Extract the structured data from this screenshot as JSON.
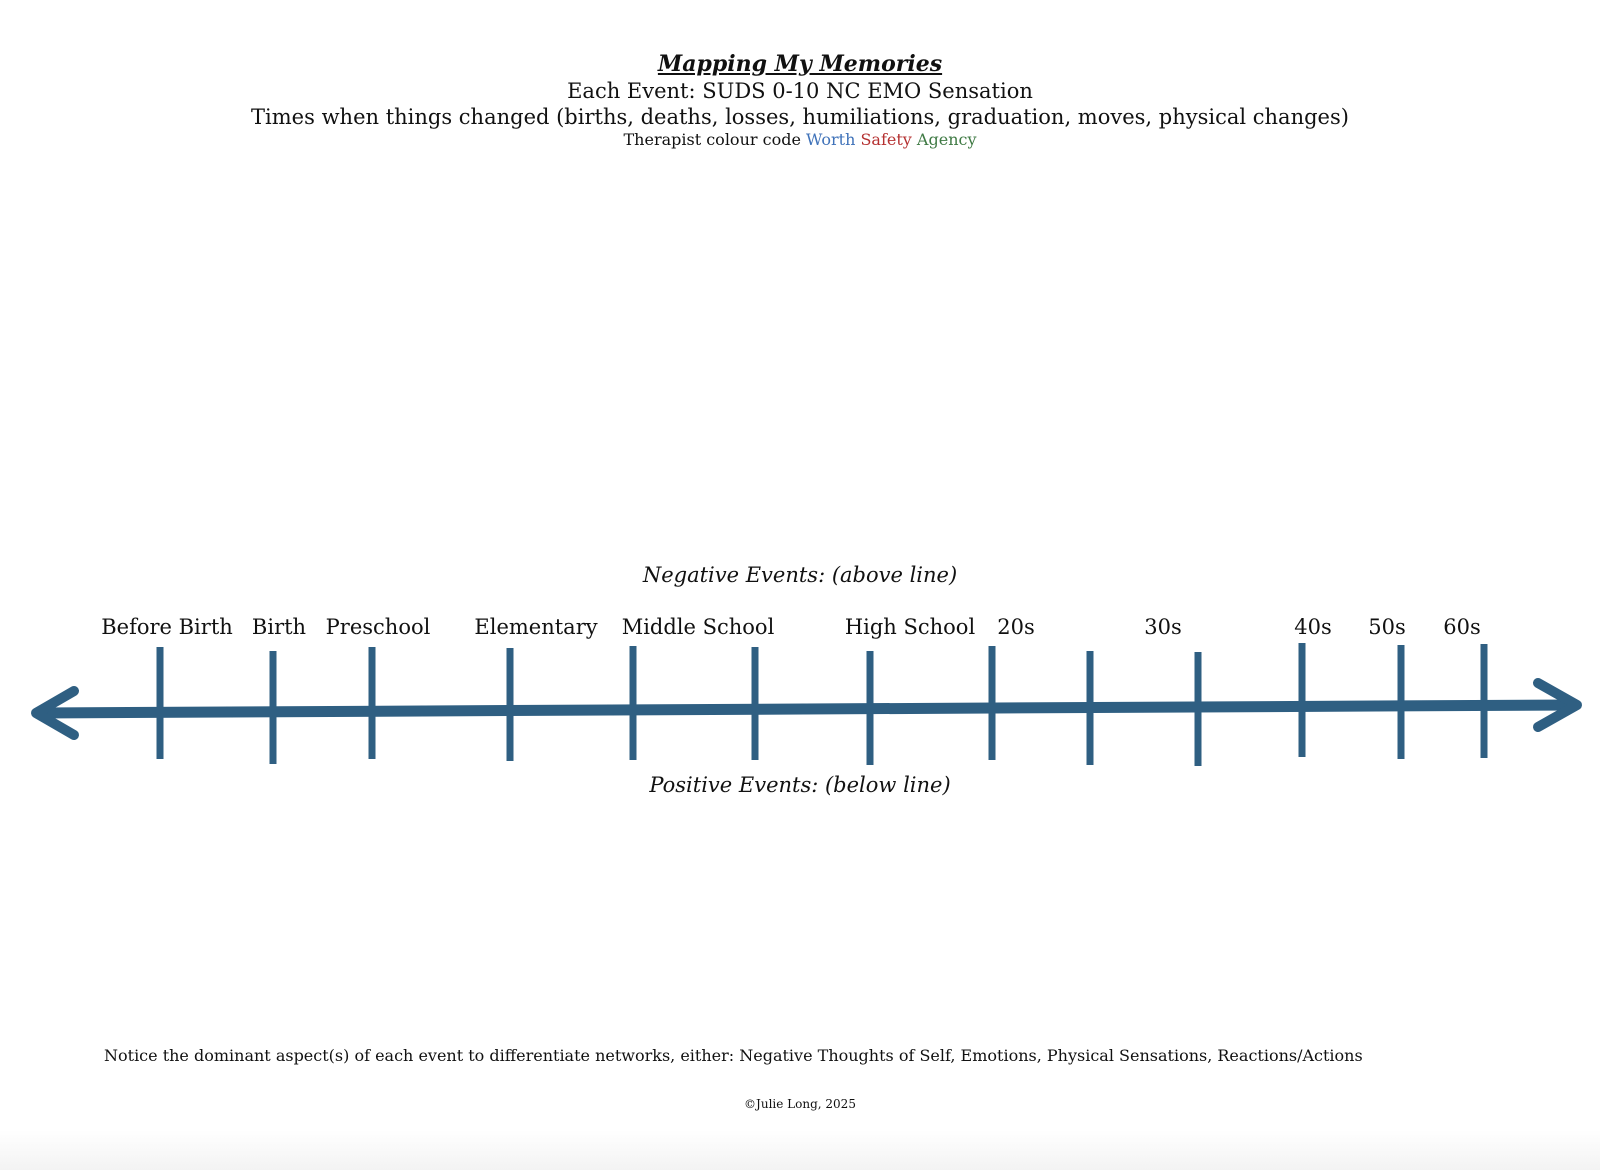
{
  "header": {
    "title": "Mapping My Memories",
    "line1": "Each Event: SUDS 0-10 NC EMO Sensation",
    "line2": "Times when things changed (births, deaths, losses, humiliations, graduation, moves, physical changes)",
    "colour_code_prefix": "Therapist colour code",
    "codes": [
      {
        "label": "Worth",
        "color": "#3f72b9"
      },
      {
        "label": "Safety",
        "color": "#b53131"
      },
      {
        "label": "Agency",
        "color": "#3f7a44"
      }
    ]
  },
  "timeline": {
    "negative_label": "Negative Events: (above line)",
    "positive_label": "Positive Events: (below line)",
    "line_color": "#2f5f82",
    "stages": [
      "Before Birth",
      "Birth",
      "Preschool",
      "Elementary",
      "Middle School",
      "High School",
      "20s",
      "30s",
      "40s",
      "50s",
      "60s"
    ]
  },
  "footer": {
    "notice": "Notice the dominant aspect(s) of each event to differentiate networks, either: Negative Thoughts of Self, Emotions, Physical Sensations, Reactions/Actions",
    "copyright": "©Julie Long, 2025"
  }
}
